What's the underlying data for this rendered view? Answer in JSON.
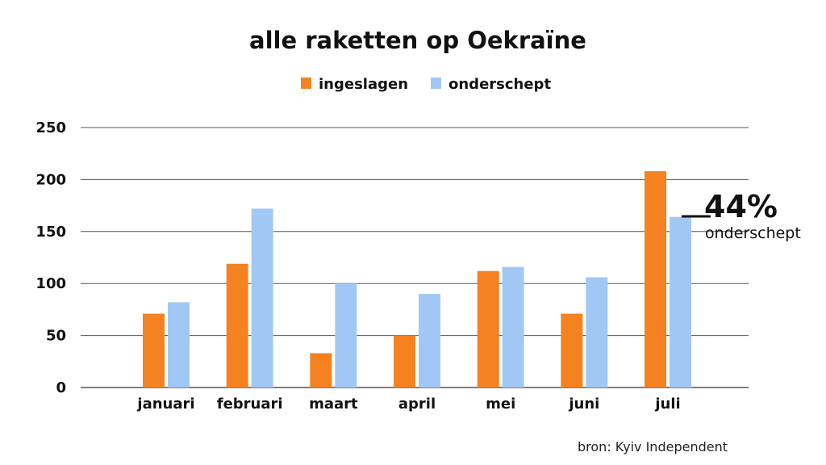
{
  "chart_data": {
    "type": "bar",
    "title": "alle raketten op Oekraïne",
    "categories": [
      "januari",
      "februari",
      "maart",
      "april",
      "mei",
      "juni",
      "juli"
    ],
    "series": [
      {
        "name": "ingeslagen",
        "color": "#f58220",
        "values": [
          71,
          119,
          33,
          50,
          112,
          71,
          208
        ]
      },
      {
        "name": "onderschept",
        "color": "#a1c8f5",
        "values": [
          82,
          172,
          100,
          90,
          116,
          106,
          164
        ]
      }
    ],
    "ylim": [
      0,
      250
    ],
    "yticks": [
      0,
      50,
      100,
      150,
      200,
      250
    ],
    "xlabel": "",
    "ylabel": "",
    "grid": true,
    "legend_position": "top-center",
    "annotation": {
      "value": "44%",
      "label": "onderschept",
      "category": "juli"
    },
    "source": "bron: Kyiv Independent"
  }
}
